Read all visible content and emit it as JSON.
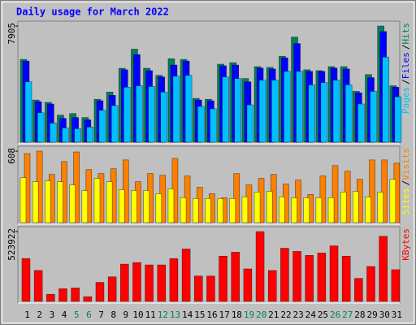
{
  "chart_data": {
    "type": "bar",
    "title": "Daily usage for March 2022",
    "legend_separator": "/",
    "categories": [
      "1",
      "2",
      "3",
      "4",
      "5",
      "6",
      "7",
      "8",
      "9",
      "10",
      "11",
      "12",
      "13",
      "14",
      "15",
      "16",
      "17",
      "18",
      "19",
      "20",
      "21",
      "22",
      "23",
      "24",
      "25",
      "26",
      "27",
      "28",
      "29",
      "30",
      "31"
    ],
    "category_colors": [
      "#000000",
      "#000000",
      "#000000",
      "#000000",
      "#00805c",
      "#00805c",
      "#000000",
      "#000000",
      "#000000",
      "#000000",
      "#000000",
      "#00805c",
      "#00805c",
      "#000000",
      "#000000",
      "#000000",
      "#000000",
      "#000000",
      "#00805c",
      "#00805c",
      "#000000",
      "#000000",
      "#000000",
      "#000000",
      "#000000",
      "#00805c",
      "#00805c",
      "#000000",
      "#000000",
      "#000000",
      "#000000"
    ],
    "panels": [
      {
        "ylim": [
          0,
          7905
        ],
        "yticks": [
          7905
        ],
        "series": [
          {
            "name": "Hits",
            "color": "#00805c",
            "values": [
              5630,
              2870,
              2710,
              1840,
              1950,
              1680,
              2920,
              3410,
              5030,
              6330,
              5030,
              4550,
              5680,
              5630,
              2980,
              2920,
              5310,
              5410,
              4330,
              5140,
              5090,
              5850,
              7150,
              4930,
              4870,
              5140,
              5140,
              3460,
              4600,
              7905,
              3840
            ]
          },
          {
            "name": "Files",
            "color": "#0000ff",
            "values": [
              5520,
              2760,
              2600,
              1620,
              1680,
              1520,
              2820,
              3190,
              4930,
              5960,
              4870,
              4440,
              5250,
              5520,
              2870,
              2820,
              5200,
              5250,
              4110,
              5040,
              4980,
              5740,
              6710,
              4820,
              4820,
              5040,
              4980,
              3360,
              4390,
              7530,
              3740
            ]
          },
          {
            "name": "Pages",
            "color": "#00c0ff",
            "values": [
              4110,
              2000,
              1300,
              970,
              920,
              1030,
              2170,
              2490,
              3740,
              3840,
              3790,
              3410,
              4490,
              4550,
              2440,
              2270,
              4440,
              4330,
              2540,
              4220,
              4220,
              4820,
              4820,
              3900,
              4060,
              4220,
              3900,
              2600,
              3460,
              5790,
              3090
            ]
          }
        ]
      },
      {
        "ylim": [
          0,
          608
        ],
        "yticks": [
          608
        ],
        "series": [
          {
            "name": "Visits",
            "color": "#ff8000",
            "values": [
              587,
              608,
              410,
              519,
              601,
              451,
              417,
              458,
              533,
              348,
              417,
              403,
              546,
              396,
              300,
              246,
              212,
              417,
              321,
              376,
              410,
              328,
              362,
              239,
              396,
              485,
              437,
              369,
              533,
              533,
              505
            ]
          },
          {
            "name": "Sites",
            "color": "#ffff00",
            "values": [
              382,
              348,
              355,
              348,
              321,
              273,
              376,
              348,
              280,
              273,
              273,
              246,
              287,
              212,
              205,
              205,
              205,
              205,
              219,
              260,
              266,
              219,
              212,
              212,
              212,
              212,
              260,
              266,
              219,
              260,
              369
            ]
          }
        ]
      },
      {
        "ylim": [
          0,
          523922
        ],
        "yticks": [
          523922
        ],
        "series": [
          {
            "name": "KBytes",
            "color": "#ff0000",
            "values": [
              321500,
              232200,
              53600,
              95300,
              101200,
              35700,
              142900,
              184600,
              279800,
              291700,
              273900,
              273900,
              321500,
              393000,
              190500,
              190500,
              339400,
              369100,
              244100,
              523922,
              232200,
              398900,
              375100,
              345300,
              363200,
              416800,
              339400,
              172700,
              262000,
              488200,
              238200
            ]
          }
        ]
      }
    ]
  }
}
